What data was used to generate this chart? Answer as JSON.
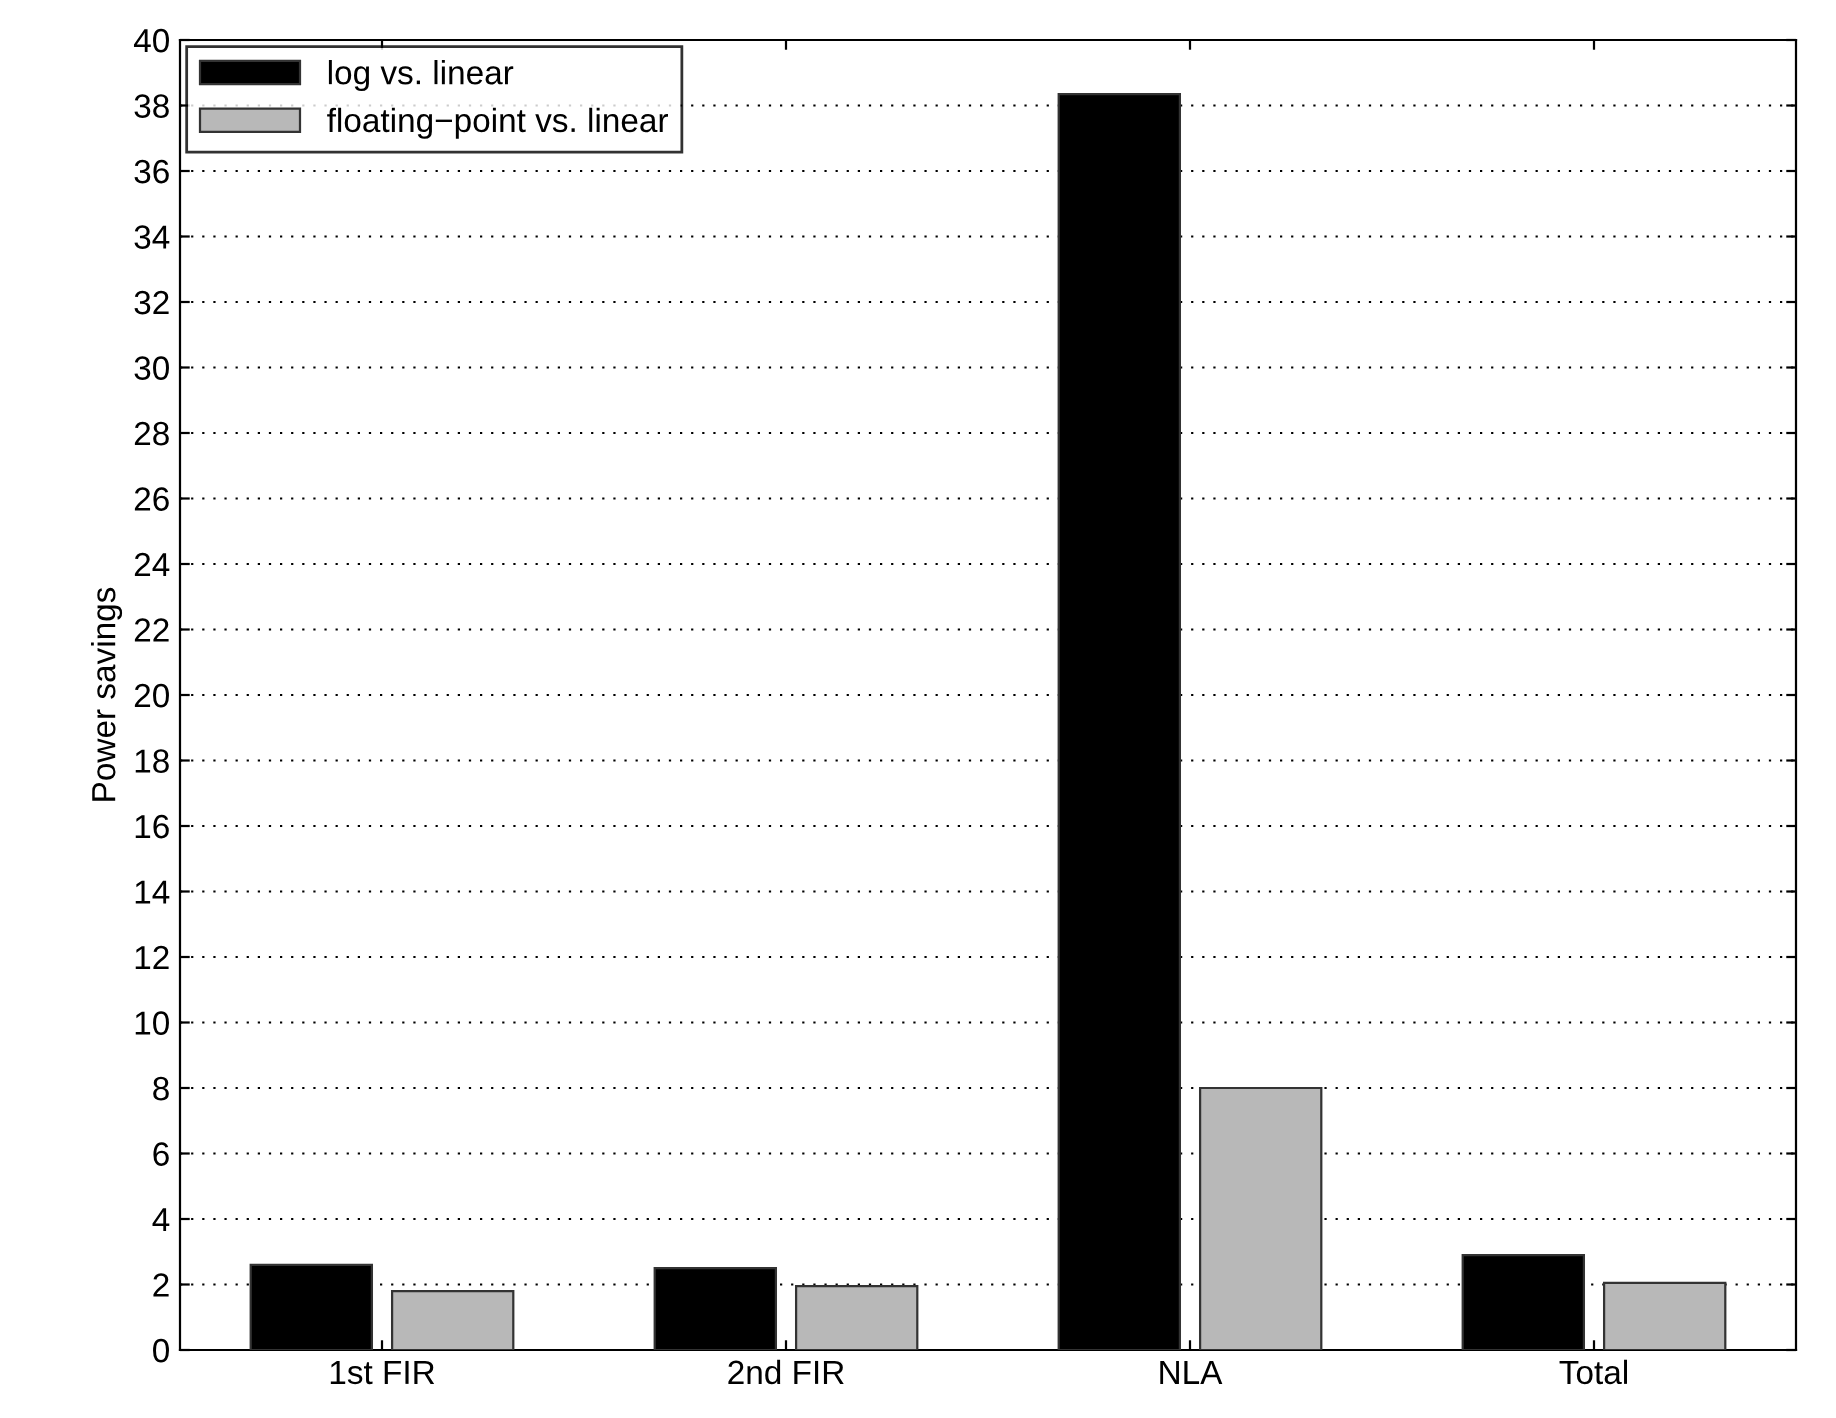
{
  "chart_data": {
    "type": "bar",
    "ylabel": "Power savings",
    "categories": [
      "1st FIR",
      "2nd FIR",
      "NLA",
      "Total"
    ],
    "series": [
      {
        "name": "log vs. linear",
        "color": "#000000",
        "values": [
          2.6,
          2.5,
          38.35,
          2.9
        ]
      },
      {
        "name": "floating−point vs. linear",
        "color": "#b8b8b8",
        "values": [
          1.8,
          1.95,
          8.0,
          2.05
        ]
      }
    ],
    "ylim": [
      0,
      40
    ],
    "yticks": [
      0,
      2,
      4,
      6,
      8,
      10,
      12,
      14,
      16,
      18,
      20,
      22,
      24,
      26,
      28,
      30,
      32,
      34,
      36,
      38,
      40
    ],
    "grid": "y",
    "legend": "top left"
  }
}
